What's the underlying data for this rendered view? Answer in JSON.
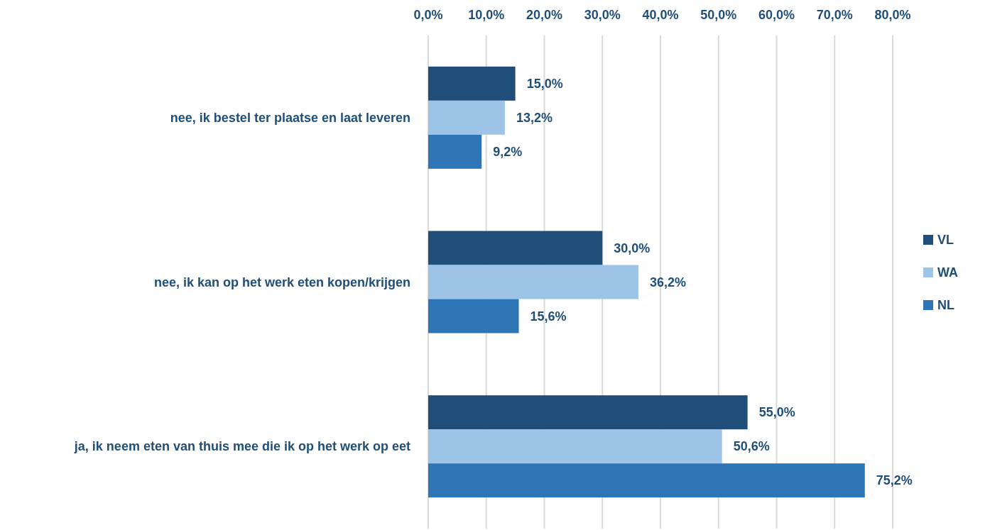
{
  "chart_data": {
    "type": "bar",
    "orientation": "horizontal",
    "categories": [
      "nee, ik bestel ter plaatse en laat leveren",
      "nee, ik kan op het werk eten kopen/krijgen",
      "ja, ik neem eten van thuis mee die ik op het werk op eet"
    ],
    "series": [
      {
        "name": "VL",
        "color": "#1f4e79",
        "values": [
          15.0,
          30.0,
          55.0
        ],
        "value_labels": [
          "15,0%",
          "30,0%",
          "55,0%"
        ]
      },
      {
        "name": "WA",
        "color": "#9dc3e6",
        "values": [
          13.2,
          36.2,
          50.6
        ],
        "value_labels": [
          "13,2%",
          "36,2%",
          "50,6%"
        ]
      },
      {
        "name": "NL",
        "color": "#2e75b6",
        "values": [
          9.2,
          15.6,
          75.2
        ],
        "value_labels": [
          "9,2%",
          "15,6%",
          "75,2%"
        ]
      }
    ],
    "xlim": [
      0,
      80
    ],
    "xticks": [
      {
        "value": 0,
        "label": "0,0%"
      },
      {
        "value": 10,
        "label": "10,0%"
      },
      {
        "value": 20,
        "label": "20,0%"
      },
      {
        "value": 30,
        "label": "30,0%"
      },
      {
        "value": 40,
        "label": "40,0%"
      },
      {
        "value": 50,
        "label": "50,0%"
      },
      {
        "value": 60,
        "label": "60,0%"
      },
      {
        "value": 70,
        "label": "70,0%"
      },
      {
        "value": 80,
        "label": "80,0%"
      }
    ],
    "grid": "x",
    "legend": "right"
  }
}
